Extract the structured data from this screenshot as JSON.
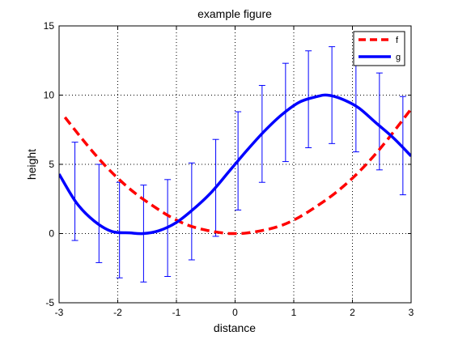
{
  "chart_data": {
    "type": "line",
    "title": "example figure",
    "xlabel": "distance",
    "ylabel": "height",
    "xlim": [
      -3,
      3
    ],
    "ylim": [
      -5,
      15
    ],
    "xticks": [
      -3,
      -2,
      -1,
      0,
      1,
      2,
      3
    ],
    "yticks": [
      -5,
      0,
      5,
      10,
      15
    ],
    "grid": true,
    "legend_position": "top-right",
    "series": [
      {
        "name": "f",
        "color": "#ff0000",
        "style": "dashed",
        "x": [
          -2.9,
          -2.6,
          -2.3,
          -2.0,
          -1.7,
          -1.4,
          -1.1,
          -0.8,
          -0.5,
          -0.2,
          0.0,
          0.2,
          0.5,
          0.8,
          1.1,
          1.4,
          1.7,
          2.0,
          2.3,
          2.6,
          3.0
        ],
        "y": [
          8.4,
          6.8,
          5.3,
          4.0,
          2.9,
          2.0,
          1.2,
          0.6,
          0.25,
          0.04,
          0.0,
          0.04,
          0.25,
          0.6,
          1.2,
          2.0,
          2.9,
          4.0,
          5.3,
          6.8,
          9.0
        ]
      },
      {
        "name": "g",
        "color": "#0000ff",
        "style": "solid",
        "x": [
          -3.0,
          -2.7,
          -2.4,
          -2.1,
          -1.8,
          -1.57,
          -1.3,
          -1.0,
          -0.7,
          -0.4,
          -0.1,
          0.2,
          0.5,
          0.8,
          1.1,
          1.4,
          1.57,
          1.8,
          2.1,
          2.4,
          2.7,
          3.0
        ],
        "y": [
          4.3,
          2.2,
          0.9,
          0.15,
          0.05,
          0.0,
          0.2,
          0.8,
          1.8,
          3.0,
          4.5,
          6.0,
          7.4,
          8.6,
          9.5,
          9.9,
          10.0,
          9.75,
          9.1,
          8.0,
          6.9,
          5.6
        ]
      }
    ],
    "errorbars": {
      "color": "#0000ff",
      "x": [
        -2.73,
        -2.32,
        -1.97,
        -1.56,
        -1.15,
        -0.74,
        -0.33,
        0.05,
        0.46,
        0.86,
        1.25,
        1.65,
        2.06,
        2.46,
        2.86
      ],
      "lower": [
        -0.5,
        -2.1,
        -3.2,
        -3.5,
        -3.1,
        -1.9,
        -0.2,
        1.7,
        3.7,
        5.2,
        6.2,
        6.5,
        5.9,
        4.6,
        2.8
      ],
      "upper": [
        6.6,
        5.0,
        3.7,
        3.5,
        3.9,
        5.1,
        6.8,
        8.8,
        10.7,
        12.3,
        13.2,
        13.5,
        12.7,
        11.6,
        9.9
      ]
    }
  }
}
